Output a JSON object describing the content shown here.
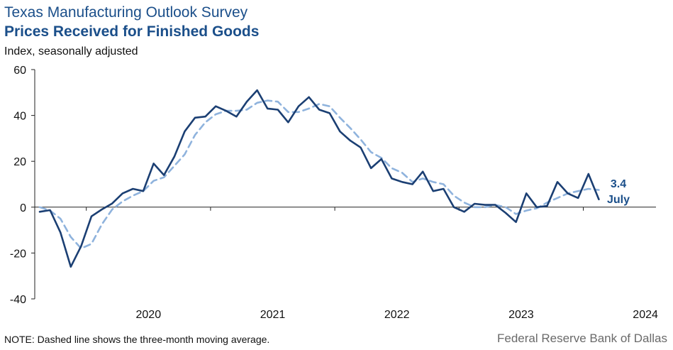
{
  "header": {
    "title": "Texas Manufacturing Outlook Survey",
    "subtitle": "Prices Received for Finished Goods",
    "units": "Index, seasonally adjusted"
  },
  "footer": {
    "note": "NOTE: Dashed line shows the three-month  moving average.",
    "source": "Federal Reserve Bank of Dallas"
  },
  "colors": {
    "monthly": "#1b3f73",
    "moving_average": "#8fb3dd",
    "text_blue": "#1b4f8a"
  },
  "chart_data": {
    "type": "line",
    "x_start": "2019-08",
    "x_end": "2024-07",
    "ylim": [
      -40,
      60
    ],
    "yticks": [
      "60",
      "40",
      "20",
      "0",
      "-20",
      "-40"
    ],
    "ytick_values": [
      60,
      40,
      20,
      0,
      -20,
      -40
    ],
    "xtick_labels": [
      "2020",
      "2021",
      "2022",
      "2023",
      "2024"
    ],
    "grid": false,
    "series": [
      {
        "style": "solid",
        "values": [
          -2.0,
          -1.3,
          -11.0,
          -26.0,
          -17.0,
          -4.0,
          -1.0,
          1.6,
          6.0,
          8.0,
          7.0,
          19.0,
          14.0,
          22.0,
          33.0,
          39.0,
          39.5,
          44.0,
          42.0,
          39.5,
          46.0,
          51.0,
          43.0,
          42.5,
          37.0,
          44.0,
          48.0,
          42.5,
          41.0,
          33.0,
          29.0,
          26.0,
          17.0,
          21.0,
          12.5,
          11.0,
          10.0,
          15.5,
          7.0,
          8.0,
          0.0,
          -2.0,
          1.5,
          1.0,
          1.0,
          -2.5,
          -6.5,
          6.0,
          0.0,
          0.5,
          11.0,
          6.0,
          4.0,
          14.5,
          3.4
        ]
      },
      {
        "style": "dashed",
        "values": [
          0.0,
          -1.5,
          -5.0,
          -13.0,
          -18.0,
          -16.0,
          -7.5,
          -1.0,
          2.5,
          5.0,
          7.0,
          11.5,
          13.0,
          18.0,
          23.0,
          31.5,
          37.0,
          40.5,
          42.0,
          42.0,
          42.5,
          45.5,
          46.5,
          46.0,
          41.5,
          41.5,
          43.0,
          45.0,
          44.0,
          39.0,
          34.5,
          29.5,
          24.0,
          21.5,
          17.0,
          15.0,
          11.0,
          12.5,
          11.0,
          10.0,
          5.0,
          2.0,
          0.0,
          0.0,
          1.0,
          0.0,
          -3.0,
          -1.5,
          -0.5,
          2.0,
          4.0,
          6.0,
          7.0,
          8.0,
          7.5
        ]
      }
    ],
    "annotations": [
      {
        "text": "3.4"
      },
      {
        "text": "July"
      }
    ]
  }
}
